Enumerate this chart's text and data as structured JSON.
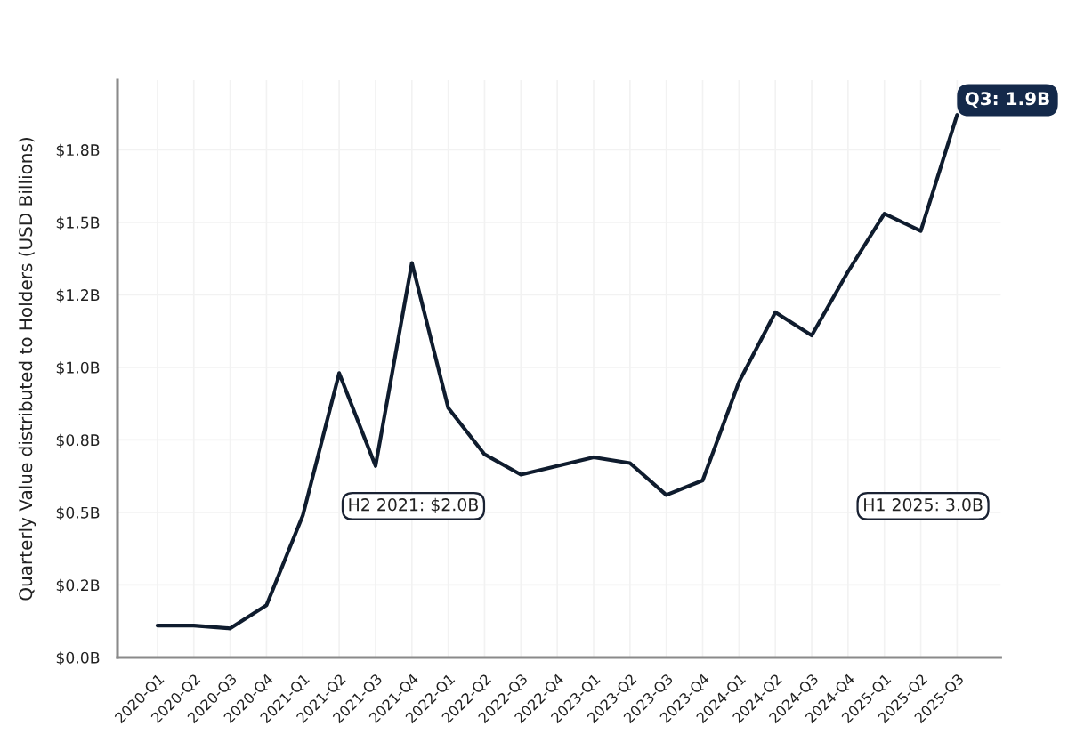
{
  "chart_data": {
    "type": "line",
    "ylabel": "Quarterly Value distributed to Holders (USD Billions)",
    "categories": [
      "2020-Q1",
      "2020-Q2",
      "2020-Q3",
      "2020-Q4",
      "2021-Q1",
      "2021-Q2",
      "2021-Q3",
      "2021-Q4",
      "2022-Q1",
      "2022-Q2",
      "2022-Q3",
      "2022-Q4",
      "2023-Q1",
      "2023-Q2",
      "2023-Q3",
      "2023-Q4",
      "2024-Q1",
      "2024-Q2",
      "2024-Q3",
      "2024-Q4",
      "2025-Q1",
      "2025-Q2",
      "2025-Q3"
    ],
    "series": [
      {
        "color": "#0f1c2e",
        "values": [
          0.11,
          0.11,
          0.1,
          0.18,
          0.49,
          0.98,
          0.66,
          1.36,
          0.86,
          0.7,
          0.63,
          0.66,
          0.69,
          0.67,
          0.56,
          0.61,
          0.95,
          1.19,
          1.11,
          1.33,
          1.53,
          1.47,
          1.87
        ]
      }
    ],
    "ylim": [
      0,
      1.99
    ],
    "yticks": [
      {
        "value": 0,
        "label": "$0.0B"
      },
      {
        "value": 0.25,
        "label": "$0.2B"
      },
      {
        "value": 0.5,
        "label": "$0.5B"
      },
      {
        "value": 0.75,
        "label": "$0.8B"
      },
      {
        "value": 1.0,
        "label": "$1.0B"
      },
      {
        "value": 1.25,
        "label": "$1.2B"
      },
      {
        "value": 1.5,
        "label": "$1.5B"
      },
      {
        "value": 1.75,
        "label": "$1.8B"
      }
    ],
    "annotations": [
      "H2 2021: $2.0B",
      "H1 2025: 3.0B",
      {
        "text": "Q3: 1.9B",
        "x": "2025-Q3",
        "y": 1.87
      }
    ],
    "grid": true,
    "marker": "none",
    "line_style": "solid"
  }
}
